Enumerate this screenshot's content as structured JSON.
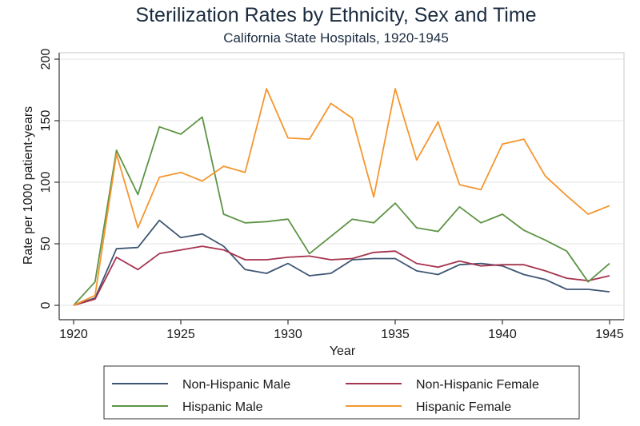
{
  "chart_data": {
    "type": "line",
    "title": "Sterilization Rates by Ethnicity, Sex and Time",
    "subtitle": "California State Hospitals, 1920-1945",
    "xlabel": "Year",
    "ylabel": "Rate per 1000 patient-years",
    "xlim": [
      1920,
      1945
    ],
    "ylim": [
      0,
      200
    ],
    "xticks": [
      1920,
      1925,
      1930,
      1935,
      1940,
      1945
    ],
    "yticks": [
      0,
      50,
      100,
      150,
      200
    ],
    "grid": true,
    "legend_position": "bottom",
    "x": [
      1920,
      1921,
      1922,
      1923,
      1924,
      1925,
      1926,
      1927,
      1928,
      1929,
      1930,
      1931,
      1932,
      1933,
      1934,
      1935,
      1936,
      1937,
      1938,
      1939,
      1940,
      1941,
      1942,
      1943,
      1944,
      1945
    ],
    "series": [
      {
        "name": "Non-Hispanic Male",
        "color": "#3d5673",
        "values": [
          0,
          6,
          46,
          47,
          69,
          55,
          58,
          48,
          29,
          26,
          34,
          24,
          26,
          37,
          38,
          38,
          28,
          25,
          33,
          34,
          32,
          25,
          21,
          13,
          13,
          11
        ]
      },
      {
        "name": "Non-Hispanic Female",
        "color": "#a6334d",
        "values": [
          0,
          5,
          39,
          29,
          42,
          45,
          48,
          45,
          37,
          37,
          39,
          40,
          37,
          38,
          43,
          44,
          34,
          31,
          36,
          32,
          33,
          33,
          28,
          22,
          20,
          24
        ]
      },
      {
        "name": "Hispanic Male",
        "color": "#5d9445",
        "values": [
          0,
          19,
          126,
          90,
          145,
          139,
          153,
          74,
          67,
          68,
          70,
          42,
          56,
          70,
          67,
          83,
          63,
          60,
          80,
          67,
          74,
          61,
          53,
          44,
          19,
          34
        ]
      },
      {
        "name": "Hispanic Female",
        "color": "#f5962e",
        "values": [
          0,
          8,
          123,
          63,
          104,
          108,
          101,
          113,
          108,
          176,
          136,
          135,
          164,
          152,
          88,
          176,
          118,
          149,
          98,
          94,
          131,
          135,
          105,
          89,
          74,
          81
        ]
      }
    ]
  }
}
